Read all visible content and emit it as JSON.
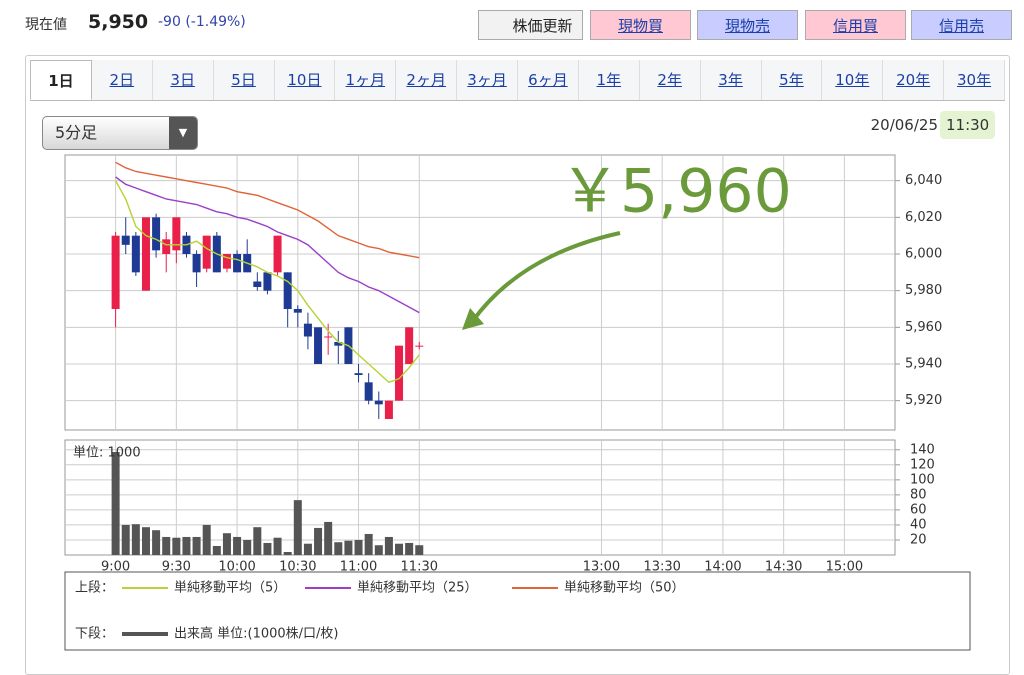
{
  "header": {
    "label": "現在値",
    "price": "5,950",
    "change": "-90 (-1.49%)",
    "buttons": [
      "株価更新",
      "現物買",
      "現物売",
      "信用買",
      "信用売"
    ]
  },
  "tabs": [
    "1日",
    "2日",
    "3日",
    "5日",
    "10日",
    "1ヶ月",
    "2ヶ月",
    "3ヶ月",
    "6ヶ月",
    "1年",
    "2年",
    "3年",
    "5年",
    "10年",
    "20年",
    "30年"
  ],
  "interval": "5分足",
  "timestamp": {
    "date": "20/06/25",
    "time": "11:30"
  },
  "legend": {
    "upper": "上段：",
    "lower": "下段："
  },
  "chart_data": [
    {
      "type": "candlestick",
      "annotation": "￥5,960",
      "annotation_color": "#6a9a3a",
      "up_color": "#e8204a",
      "down_color": "#1f3a93",
      "grid": true,
      "x": [
        540,
        545,
        550,
        555,
        560,
        565,
        570,
        575,
        580,
        585,
        590,
        595,
        600,
        605,
        610,
        615,
        620,
        625,
        630,
        635,
        640,
        645,
        650,
        655,
        660,
        665,
        670,
        675,
        680,
        685,
        690
      ],
      "open": [
        5970,
        6010,
        6010,
        5980,
        6020,
        6000,
        6002,
        6010,
        6000,
        5992,
        6010,
        5992,
        6000,
        6000,
        5985,
        5990,
        5990,
        5990,
        5970,
        5962,
        5960,
        5955,
        5952,
        5960,
        5935,
        5930,
        5920,
        5910,
        5920,
        5940,
        5950
      ],
      "high": [
        6012,
        6020,
        6012,
        6020,
        6022,
        6012,
        6020,
        6012,
        6002,
        6010,
        6012,
        6000,
        6002,
        6008,
        5990,
        5990,
        6010,
        5990,
        5972,
        5968,
        5960,
        5962,
        5958,
        5960,
        5940,
        5935,
        5925,
        5920,
        5950,
        5960,
        5952
      ],
      "low": [
        5960,
        6000,
        5988,
        5980,
        5998,
        5990,
        5995,
        5998,
        5982,
        5990,
        5990,
        5990,
        5990,
        5990,
        5980,
        5978,
        5988,
        5960,
        5960,
        5948,
        5940,
        5945,
        5940,
        5940,
        5930,
        5918,
        5910,
        5910,
        5920,
        5940,
        5948
      ],
      "close": [
        6010,
        6005,
        5990,
        6020,
        6002,
        6008,
        6020,
        6000,
        5990,
        6010,
        5990,
        6000,
        5990,
        5990,
        5982,
        5980,
        6010,
        5970,
        5968,
        5955,
        5940,
        5955,
        5950,
        5940,
        5934,
        5920,
        5918,
        5920,
        5950,
        5960,
        5950
      ],
      "series": [
        {
          "name": "単純移動平均（5）",
          "color": "#b5d334",
          "values": [
            6040,
            6030,
            6015,
            6010,
            6008,
            6005,
            6005,
            6005,
            6007,
            6003,
            6000,
            5998,
            5997,
            5995,
            5993,
            5990,
            5988,
            5985,
            5980,
            5972,
            5965,
            5958,
            5952,
            5950,
            5945,
            5940,
            5935,
            5930,
            5932,
            5938,
            5945
          ]
        },
        {
          "name": "単純移動平均（25）",
          "color": "#9b3fc8",
          "values": [
            6042,
            6038,
            6036,
            6034,
            6032,
            6030,
            6029,
            6028,
            6027,
            6025,
            6023,
            6022,
            6020,
            6019,
            6017,
            6015,
            6012,
            6010,
            6008,
            6005,
            6000,
            5995,
            5990,
            5987,
            5985,
            5982,
            5980,
            5977,
            5974,
            5971,
            5968
          ]
        },
        {
          "name": "単純移動平均（50）",
          "color": "#e0643a",
          "values": [
            6050,
            6047,
            6045,
            6044,
            6043,
            6042,
            6041,
            6040,
            6039,
            6038,
            6037,
            6036,
            6034,
            6033,
            6032,
            6030,
            6028,
            6026,
            6024,
            6021,
            6018,
            6014,
            6010,
            6008,
            6006,
            6004,
            6003,
            6001,
            6000,
            5999,
            5998
          ]
        }
      ],
      "xlim": [
        515,
        925
      ],
      "ylim": [
        5904,
        6054
      ],
      "yticks": [
        {
          "value": 5920,
          "label": "5,920"
        },
        {
          "value": 5940,
          "label": "5,940"
        },
        {
          "value": 5960,
          "label": "5,960"
        },
        {
          "value": 5980,
          "label": "5,980"
        },
        {
          "value": 6000,
          "label": "6,000"
        },
        {
          "value": 6020,
          "label": "6,020"
        },
        {
          "value": 6040,
          "label": "6,040"
        }
      ]
    },
    {
      "type": "bar",
      "unit_label": "単位: 1000",
      "grid": true,
      "x": [
        540,
        545,
        550,
        555,
        560,
        565,
        570,
        575,
        580,
        585,
        590,
        595,
        600,
        605,
        610,
        615,
        620,
        625,
        630,
        635,
        640,
        645,
        650,
        655,
        660,
        665,
        670,
        675,
        680,
        685,
        690
      ],
      "series": [
        {
          "name": "出来高 単位:(1000株/口/枚)",
          "color": "#555555",
          "values": [
            137,
            40,
            41,
            37,
            33,
            24,
            23,
            24,
            24,
            40,
            12,
            29,
            24,
            20,
            37,
            16,
            23,
            4,
            73,
            15,
            36,
            44,
            17,
            19,
            20,
            28,
            13,
            24,
            15,
            16,
            13
          ]
        }
      ],
      "xlim": [
        515,
        925
      ],
      "xticks": [
        {
          "value": 540,
          "label": "9:00"
        },
        {
          "value": 570,
          "label": "9:30"
        },
        {
          "value": 600,
          "label": "10:00"
        },
        {
          "value": 630,
          "label": "10:30"
        },
        {
          "value": 660,
          "label": "11:00"
        },
        {
          "value": 690,
          "label": "11:30"
        },
        {
          "value": 780,
          "label": "13:00"
        },
        {
          "value": 810,
          "label": "13:30"
        },
        {
          "value": 840,
          "label": "14:00"
        },
        {
          "value": 870,
          "label": "14:30"
        },
        {
          "value": 900,
          "label": "15:00"
        }
      ],
      "ylim": [
        0,
        153
      ],
      "yticks": [
        20,
        40,
        60,
        80,
        100,
        120,
        140
      ]
    }
  ]
}
